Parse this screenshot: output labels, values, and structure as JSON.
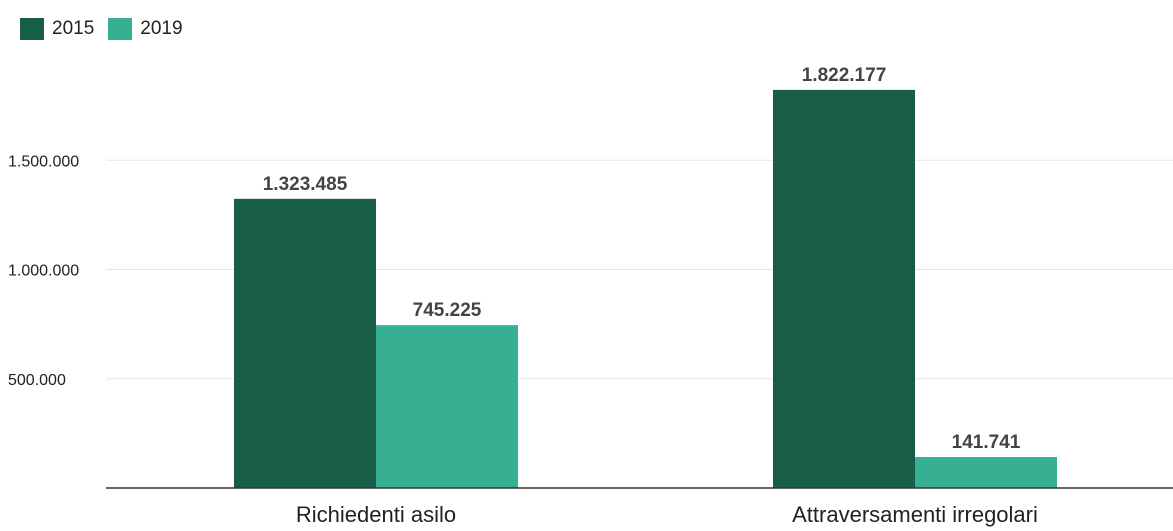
{
  "chart_data": {
    "type": "bar",
    "categories": [
      "Richiedenti asilo",
      "Attraversamenti irregolari"
    ],
    "series": [
      {
        "name": "2015",
        "color": "#185E46",
        "values": [
          1323485,
          1822177
        ],
        "labels": [
          "1.323.485",
          "1.822.177"
        ]
      },
      {
        "name": "2019",
        "color": "#37AF93",
        "values": [
          745225,
          141741
        ],
        "labels": [
          "745.225",
          "141.741"
        ]
      }
    ],
    "yticks": [
      500000,
      1000000,
      1500000
    ],
    "ytick_labels": [
      "500.000",
      "1.000.000",
      "1.500.000"
    ],
    "ylim": [
      0,
      1900000
    ],
    "grid": true,
    "legend_position": "top-left",
    "title": "",
    "xlabel": "",
    "ylabel": ""
  }
}
